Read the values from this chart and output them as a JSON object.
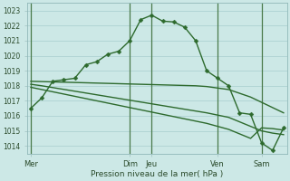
{
  "xlabel": "Pression niveau de la mer( hPa )",
  "background_color": "#cce8e6",
  "grid_color": "#a8cece",
  "line_color": "#2d6a2d",
  "vline_color": "#4a7a4a",
  "ylim": [
    1013.5,
    1023.5
  ],
  "yticks": [
    1014,
    1015,
    1016,
    1017,
    1018,
    1019,
    1020,
    1021,
    1022,
    1023
  ],
  "x_tick_labels": [
    "Mer",
    "Dim",
    "Jeu",
    "Ven",
    "Sam"
  ],
  "x_tick_pos": [
    0,
    9,
    11,
    17,
    21
  ],
  "total_points": 24,
  "series_main": [
    1016.5,
    1017.2,
    1018.3,
    1018.4,
    1018.5,
    1019.4,
    1019.6,
    1020.1,
    1020.3,
    1021.0,
    1022.4,
    1022.7,
    1022.3,
    1022.25,
    1021.9,
    1021.0,
    1019.0,
    1018.5,
    1018.0,
    1016.2,
    1016.1,
    1014.2,
    1013.7,
    1015.2
  ],
  "series_flat1": [
    1018.3,
    1018.28,
    1018.26,
    1018.24,
    1018.22,
    1018.2,
    1018.18,
    1018.16,
    1018.14,
    1018.12,
    1018.1,
    1018.08,
    1018.06,
    1018.04,
    1018.02,
    1018.0,
    1017.95,
    1017.85,
    1017.75,
    1017.5,
    1017.25,
    1016.9,
    1016.55,
    1016.2
  ],
  "series_flat2": [
    1018.1,
    1018.0,
    1017.88,
    1017.76,
    1017.64,
    1017.52,
    1017.4,
    1017.28,
    1017.16,
    1017.04,
    1016.92,
    1016.8,
    1016.68,
    1016.56,
    1016.44,
    1016.32,
    1016.2,
    1016.05,
    1015.9,
    1015.6,
    1015.3,
    1015.0,
    1014.85,
    1014.75
  ],
  "series_flat3": [
    1017.9,
    1017.75,
    1017.6,
    1017.45,
    1017.3,
    1017.15,
    1017.0,
    1016.85,
    1016.7,
    1016.55,
    1016.4,
    1016.25,
    1016.1,
    1015.95,
    1015.8,
    1015.65,
    1015.5,
    1015.3,
    1015.1,
    1014.8,
    1014.5,
    1015.2,
    1015.15,
    1015.05
  ]
}
